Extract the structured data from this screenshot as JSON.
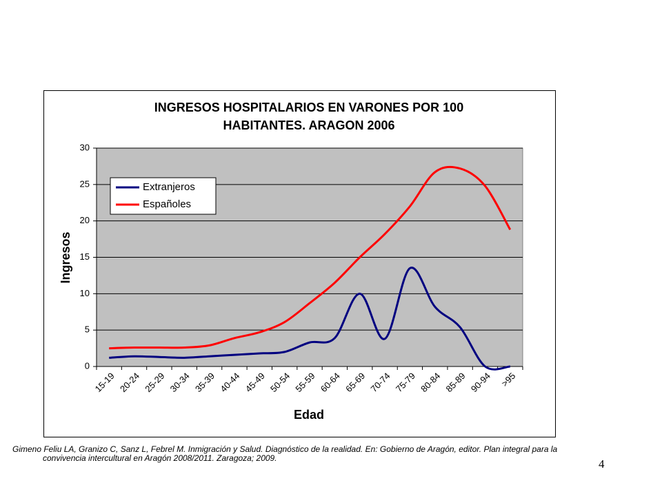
{
  "chart_data": {
    "type": "line",
    "title": [
      "INGRESOS HOSPITALARIOS EN VARONES POR 100",
      "HABITANTES. ARAGON 2006"
    ],
    "x_label": "Edad",
    "y_label": "Ingresos",
    "categories": [
      "15-19",
      "20-24",
      "25-29",
      "30-34",
      "35-39",
      "40-44",
      "45-49",
      "50-54",
      "55-59",
      "60-64",
      "65-69",
      "70-74",
      "75-79",
      "80-84",
      "85-89",
      "90-94",
      ">95"
    ],
    "series": [
      {
        "name": "Extranjeros",
        "color": "#000080",
        "values": [
          1.2,
          1.4,
          1.3,
          1.2,
          1.4,
          1.6,
          1.8,
          2.0,
          3.3,
          3.9,
          10.0,
          3.8,
          13.5,
          8.2,
          5.4,
          0,
          0
        ]
      },
      {
        "name": "Españoles",
        "color": "#ff0000",
        "values": [
          2.5,
          2.6,
          2.6,
          2.6,
          2.9,
          3.9,
          4.7,
          6.1,
          8.7,
          11.5,
          15.0,
          18.2,
          22.0,
          26.7,
          27.2,
          24.8,
          18.8
        ]
      }
    ],
    "ylim": [
      0,
      30
    ],
    "yticks": [
      0,
      5,
      10,
      15,
      20,
      25,
      30
    ],
    "grid": true,
    "legend": "top-left",
    "plot_background": "#c0c0c0"
  },
  "citation": [
    "Gimeno Feliu LA, Granizo C, Sanz L, Febrel M. Inmigración y Salud. Diagnóstico de la realidad. En: Gobierno de Aragón, editor. Plan integral para la",
    "convivencia intercultural en Aragón 2008/2011. Zaragoza; 2009."
  ],
  "page_number": "4"
}
